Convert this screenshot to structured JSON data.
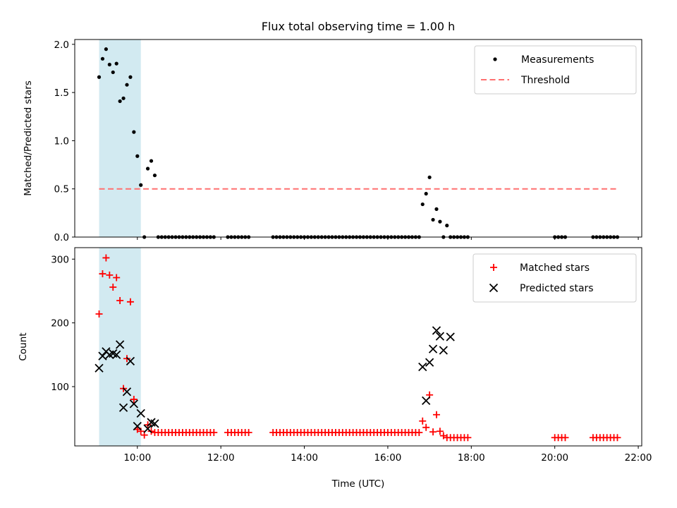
{
  "chart_data": {
    "title": "Flux total observing time = 1.00 h",
    "xlabel": "Time (UTC)",
    "x_ticks": [
      "10:00",
      "12:00",
      "14:00",
      "16:00",
      "18:00",
      "20:00",
      "22:00"
    ],
    "x_range": [
      "08:30",
      "22:05"
    ],
    "shaded_interval": [
      "09:05",
      "10:05"
    ],
    "shade_color": "#add8e6",
    "panels": [
      {
        "type": "scatter",
        "ylabel": "Matched/Predicted stars",
        "ylim": [
          0.0,
          2.05
        ],
        "y_ticks": [
          "0.0",
          "0.5",
          "1.0",
          "1.5",
          "2.0"
        ],
        "legend_position": "top-right",
        "threshold": {
          "name": "Threshold",
          "value": 0.5,
          "x_range": [
            "09:05",
            "21:30"
          ],
          "color": "#ff7070"
        },
        "series": [
          {
            "name": "Measurements",
            "color": "#000000",
            "marker": "dot",
            "x": [
              "09:05",
              "09:10",
              "09:15",
              "09:20",
              "09:25",
              "09:30",
              "09:35",
              "09:40",
              "09:45",
              "09:50",
              "09:55",
              "10:00",
              "10:05",
              "10:10",
              "10:15",
              "10:20",
              "10:25",
              "10:30",
              "10:35",
              "10:40",
              "10:45",
              "10:50",
              "10:55",
              "11:00",
              "11:05",
              "11:10",
              "11:15",
              "11:20",
              "11:25",
              "11:30",
              "11:35",
              "11:40",
              "11:45",
              "11:50",
              "12:10",
              "12:15",
              "12:20",
              "12:25",
              "12:30",
              "12:35",
              "12:40",
              "13:15",
              "13:20",
              "13:25",
              "13:30",
              "13:35",
              "13:40",
              "13:45",
              "13:50",
              "13:55",
              "14:00",
              "14:05",
              "14:10",
              "14:15",
              "14:20",
              "14:25",
              "14:30",
              "14:35",
              "14:40",
              "14:45",
              "14:50",
              "14:55",
              "15:00",
              "15:05",
              "15:10",
              "15:15",
              "15:20",
              "15:25",
              "15:30",
              "15:35",
              "15:40",
              "15:45",
              "15:50",
              "15:55",
              "16:00",
              "16:05",
              "16:10",
              "16:15",
              "16:20",
              "16:25",
              "16:30",
              "16:35",
              "16:40",
              "16:45",
              "16:50",
              "16:55",
              "17:00",
              "17:05",
              "17:10",
              "17:15",
              "17:20",
              "17:25",
              "17:30",
              "17:35",
              "17:40",
              "17:45",
              "17:50",
              "17:55",
              "20:00",
              "20:05",
              "20:10",
              "20:15",
              "20:55",
              "21:00",
              "21:05",
              "21:10",
              "21:15",
              "21:20",
              "21:25",
              "21:30"
            ],
            "y": [
              1.66,
              1.85,
              1.95,
              1.79,
              1.71,
              1.8,
              1.41,
              1.44,
              1.58,
              1.66,
              1.09,
              0.84,
              0.54,
              0.0,
              0.71,
              0.79,
              0.64,
              0.0,
              0.0,
              0.0,
              0.0,
              0.0,
              0.0,
              0.0,
              0.0,
              0.0,
              0.0,
              0.0,
              0.0,
              0.0,
              0.0,
              0.0,
              0.0,
              0.0,
              0.0,
              0.0,
              0.0,
              0.0,
              0.0,
              0.0,
              0.0,
              0.0,
              0.0,
              0.0,
              0.0,
              0.0,
              0.0,
              0.0,
              0.0,
              0.0,
              0.0,
              0.0,
              0.0,
              0.0,
              0.0,
              0.0,
              0.0,
              0.0,
              0.0,
              0.0,
              0.0,
              0.0,
              0.0,
              0.0,
              0.0,
              0.0,
              0.0,
              0.0,
              0.0,
              0.0,
              0.0,
              0.0,
              0.0,
              0.0,
              0.0,
              0.0,
              0.0,
              0.0,
              0.0,
              0.0,
              0.0,
              0.0,
              0.0,
              0.0,
              0.34,
              0.45,
              0.62,
              0.18,
              0.29,
              0.16,
              0.0,
              0.12,
              0.0,
              0.0,
              0.0,
              0.0,
              0.0,
              0.0,
              0.0,
              0.0,
              0.0,
              0.0,
              0.0,
              0.0,
              0.0,
              0.0,
              0.0,
              0.0,
              0.0,
              0.0
            ]
          }
        ]
      },
      {
        "type": "scatter",
        "ylabel": "Count",
        "ylim": [
          7,
          318
        ],
        "y_ticks": [
          "100",
          "200",
          "300"
        ],
        "legend_position": "top-right",
        "series": [
          {
            "name": "Matched stars",
            "color": "#ff0000",
            "marker": "plus",
            "x": [
              "09:05",
              "09:10",
              "09:15",
              "09:20",
              "09:25",
              "09:30",
              "09:35",
              "09:40",
              "09:45",
              "09:50",
              "09:55",
              "10:00",
              "10:05",
              "10:10",
              "10:15",
              "10:20",
              "10:25",
              "10:30",
              "10:35",
              "10:40",
              "10:45",
              "10:50",
              "10:55",
              "11:00",
              "11:05",
              "11:10",
              "11:15",
              "11:20",
              "11:25",
              "11:30",
              "11:35",
              "11:40",
              "11:45",
              "11:50",
              "12:10",
              "12:15",
              "12:20",
              "12:25",
              "12:30",
              "12:35",
              "12:40",
              "13:15",
              "13:20",
              "13:25",
              "13:30",
              "13:35",
              "13:40",
              "13:45",
              "13:50",
              "13:55",
              "14:00",
              "14:05",
              "14:10",
              "14:15",
              "14:20",
              "14:25",
              "14:30",
              "14:35",
              "14:40",
              "14:45",
              "14:50",
              "14:55",
              "15:00",
              "15:05",
              "15:10",
              "15:15",
              "15:20",
              "15:25",
              "15:30",
              "15:35",
              "15:40",
              "15:45",
              "15:50",
              "15:55",
              "16:00",
              "16:05",
              "16:10",
              "16:15",
              "16:20",
              "16:25",
              "16:30",
              "16:35",
              "16:40",
              "16:45",
              "16:50",
              "16:55",
              "17:00",
              "17:05",
              "17:10",
              "17:15",
              "17:20",
              "17:25",
              "17:30",
              "17:35",
              "17:40",
              "17:45",
              "17:50",
              "17:55",
              "20:00",
              "20:05",
              "20:10",
              "20:15",
              "20:55",
              "21:00",
              "21:05",
              "21:10",
              "21:15",
              "21:20",
              "21:25",
              "21:30"
            ],
            "y": [
              214,
              277,
              302,
              275,
              256,
              271,
              235,
              97,
              144,
              233,
              80,
              33,
              30,
              24,
              40,
              30,
              28,
              28,
              28,
              28,
              28,
              28,
              28,
              28,
              28,
              28,
              28,
              28,
              28,
              28,
              28,
              28,
              28,
              28,
              28,
              28,
              28,
              28,
              28,
              28,
              28,
              28,
              28,
              28,
              28,
              28,
              28,
              28,
              28,
              28,
              28,
              28,
              28,
              28,
              28,
              28,
              28,
              28,
              28,
              28,
              28,
              28,
              28,
              28,
              28,
              28,
              28,
              28,
              28,
              28,
              28,
              28,
              28,
              28,
              28,
              28,
              28,
              28,
              28,
              28,
              28,
              28,
              28,
              28,
              46,
              36,
              87,
              29,
              56,
              30,
              23,
              20,
              20,
              20,
              20,
              20,
              20,
              20,
              20,
              20,
              20,
              20,
              20,
              20,
              20,
              20,
              20,
              20,
              20,
              20
            ]
          },
          {
            "name": "Predicted stars",
            "color": "#000000",
            "marker": "cross",
            "x": [
              "09:05",
              "09:10",
              "09:15",
              "09:20",
              "09:25",
              "09:30",
              "09:35",
              "09:40",
              "09:45",
              "09:50",
              "09:55",
              "10:00",
              "10:05",
              "10:15",
              "10:20",
              "10:25",
              "16:50",
              "16:55",
              "17:00",
              "17:05",
              "17:10",
              "17:15",
              "17:20",
              "17:30"
            ],
            "y": [
              129,
              148,
              155,
              150,
              152,
              150,
              166,
              67,
              92,
              140,
              73,
              38,
              58,
              34,
              44,
              42,
              131,
              78,
              138,
              159,
              188,
              179,
              157,
              178
            ]
          }
        ]
      }
    ]
  }
}
